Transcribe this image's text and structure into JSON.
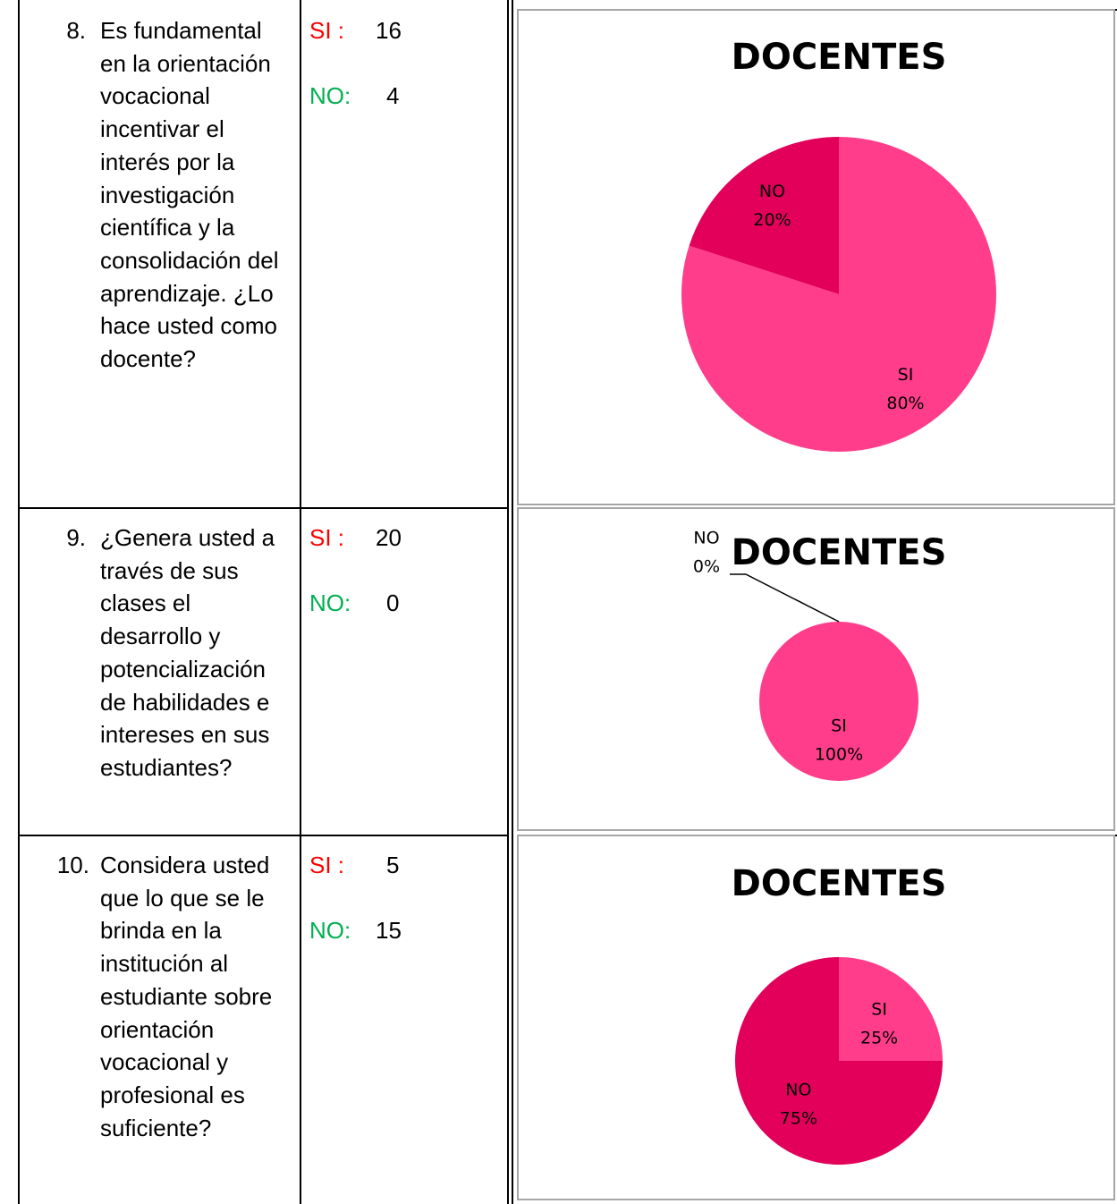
{
  "rows": [
    {
      "number": "8.",
      "question": "Es fundamental en la orientación vocacional incentivar el interés por la investigación científica y la consolidación del aprendizaje. ¿Lo hace usted como docente?",
      "answers": [
        {
          "label": "SI :",
          "value": 16
        },
        {
          "label": "NO:",
          "value": 4
        }
      ],
      "chart": {
        "type": "pie",
        "title": "DOCENTES",
        "categories": [
          "SI",
          "NO"
        ],
        "values": [
          80,
          20
        ],
        "value_labels": [
          "80%",
          "20%"
        ],
        "colors": [
          "#ff3d8b",
          "#e2005a"
        ]
      }
    },
    {
      "number": "9.",
      "question": "¿Genera usted a través de sus clases el desarrollo y potencialización de habilidades e intereses en sus estudiantes?",
      "answers": [
        {
          "label": "SI :",
          "value": 20
        },
        {
          "label": "NO:",
          "value": 0
        }
      ],
      "chart": {
        "type": "pie",
        "title": "DOCENTES",
        "categories": [
          "SI",
          "NO"
        ],
        "values": [
          100,
          0
        ],
        "value_labels": [
          "100%",
          "0%"
        ],
        "colors": [
          "#ff3d8b",
          "#e2005a"
        ]
      }
    },
    {
      "number": "10.",
      "question": "Considera usted que lo que se le brinda en la institución al estudiante sobre orientación vocacional  y profesional es suficiente?",
      "answers": [
        {
          "label": "SI :",
          "value": 5
        },
        {
          "label": "NO:",
          "value": 15
        }
      ],
      "chart": {
        "type": "pie",
        "title": "DOCENTES",
        "categories": [
          "SI",
          "NO"
        ],
        "values": [
          25,
          75
        ],
        "value_labels": [
          "25%",
          "75%"
        ],
        "colors": [
          "#ff3d8b",
          "#e2005a"
        ]
      }
    }
  ]
}
